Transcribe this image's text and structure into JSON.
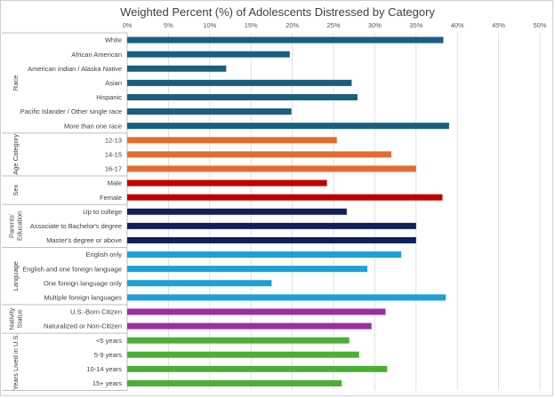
{
  "chart_data": {
    "type": "bar",
    "orientation": "horizontal",
    "title": "Weighted Percent (%) of Adolescents Distressed by Category",
    "xlim": [
      0,
      50
    ],
    "x_ticks": [
      "0%",
      "5%",
      "10%",
      "15%",
      "20%",
      "25%",
      "30%",
      "35%",
      "40%",
      "45%",
      "50%"
    ],
    "grid": true,
    "groups": [
      {
        "name": "Race",
        "color": "#1a5e80",
        "items": [
          {
            "label": "White",
            "value": 38.3
          },
          {
            "label": "African American",
            "value": 19.7
          },
          {
            "label": "American Indian / Alaska Native",
            "value": 12.0
          },
          {
            "label": "Asian",
            "value": 27.2
          },
          {
            "label": "Hispanic",
            "value": 27.9
          },
          {
            "label": "Pacific Islander / Other single race",
            "value": 19.9
          },
          {
            "label": "More than one race",
            "value": 39.0
          }
        ]
      },
      {
        "name": "Age Category",
        "color": "#e46c2f",
        "items": [
          {
            "label": "12-13",
            "value": 25.4
          },
          {
            "label": "14-15",
            "value": 32.0
          },
          {
            "label": "16-17",
            "value": 35.0
          }
        ]
      },
      {
        "name": "Sex",
        "color": "#c00000",
        "items": [
          {
            "label": "Male",
            "value": 24.2
          },
          {
            "label": "Female",
            "value": 38.2
          }
        ]
      },
      {
        "name": "Parents' Education",
        "name_lines": [
          "Parents'",
          "Education"
        ],
        "color": "#0f1f5c",
        "items": [
          {
            "label": "Up to college",
            "value": 26.6
          },
          {
            "label": "Associate to Bachelor's degree",
            "value": 35.0
          },
          {
            "label": "Master's degree or above",
            "value": 35.0
          }
        ]
      },
      {
        "name": "Language",
        "color": "#1e9fd8",
        "items": [
          {
            "label": "English only",
            "value": 33.2
          },
          {
            "label": "English and one foreign language",
            "value": 29.1
          },
          {
            "label": "One foreign language only",
            "value": 17.5
          },
          {
            "label": "Multiple foreign languages",
            "value": 38.6
          }
        ]
      },
      {
        "name": "Nativity Status",
        "name_lines": [
          "Nativity",
          "Status"
        ],
        "color": "#9b2f9e",
        "items": [
          {
            "label": "U.S.-Born Citizen",
            "value": 31.3
          },
          {
            "label": "Naturalized or Non-Citizen",
            "value": 29.6
          }
        ]
      },
      {
        "name": "Years Lived in U.S.",
        "color": "#4caf35",
        "items": [
          {
            "label": "<5 years",
            "value": 26.9
          },
          {
            "label": "5-9 years",
            "value": 28.1
          },
          {
            "label": "10-14 years",
            "value": 31.5
          },
          {
            "label": "15+ years",
            "value": 26.0
          }
        ]
      }
    ]
  }
}
